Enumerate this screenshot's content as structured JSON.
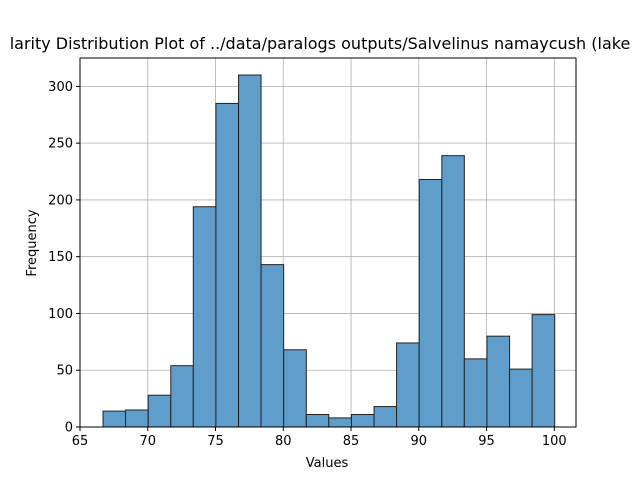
{
  "chart_data": {
    "type": "bar",
    "title": "larity Distribution Plot of ../data/paralogs outputs/Salvelinus namaycush (lake",
    "xlabel": "Values",
    "ylabel": "Frequency",
    "xlim": [
      65,
      101.6
    ],
    "ylim": [
      0,
      325
    ],
    "xticks": [
      65,
      70,
      75,
      80,
      85,
      90,
      95,
      100
    ],
    "yticks": [
      0,
      50,
      100,
      150,
      200,
      250,
      300
    ],
    "grid": true,
    "bar_color": "#5f9ecb",
    "bar_edge_color": "#222222",
    "bins": [
      {
        "x0": 66.7,
        "x1": 68.36,
        "count": 14
      },
      {
        "x0": 68.36,
        "x1": 70.03,
        "count": 15
      },
      {
        "x0": 70.03,
        "x1": 71.7,
        "count": 28
      },
      {
        "x0": 71.7,
        "x1": 73.36,
        "count": 54
      },
      {
        "x0": 73.36,
        "x1": 75.03,
        "count": 194
      },
      {
        "x0": 75.03,
        "x1": 76.7,
        "count": 285
      },
      {
        "x0": 76.7,
        "x1": 78.36,
        "count": 310
      },
      {
        "x0": 78.36,
        "x1": 80.03,
        "count": 143
      },
      {
        "x0": 80.03,
        "x1": 81.7,
        "count": 68
      },
      {
        "x0": 81.7,
        "x1": 83.36,
        "count": 11
      },
      {
        "x0": 83.36,
        "x1": 85.03,
        "count": 8
      },
      {
        "x0": 85.03,
        "x1": 86.7,
        "count": 11
      },
      {
        "x0": 86.7,
        "x1": 88.36,
        "count": 18
      },
      {
        "x0": 88.36,
        "x1": 90.03,
        "count": 74
      },
      {
        "x0": 90.03,
        "x1": 91.7,
        "count": 218
      },
      {
        "x0": 91.7,
        "x1": 93.36,
        "count": 239
      },
      {
        "x0": 93.36,
        "x1": 95.03,
        "count": 60
      },
      {
        "x0": 95.03,
        "x1": 96.7,
        "count": 80
      },
      {
        "x0": 96.7,
        "x1": 98.36,
        "count": 51
      },
      {
        "x0": 98.36,
        "x1": 100.03,
        "count": 99
      }
    ]
  }
}
